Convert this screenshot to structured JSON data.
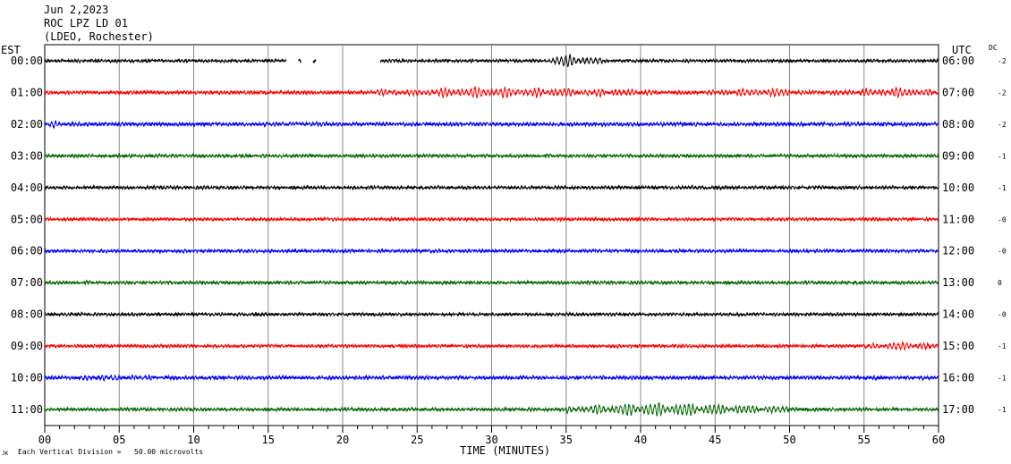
{
  "header": {
    "date": "Jun 2,2023",
    "station": "ROC LPZ LD 01",
    "network": "(LDEO, Rochester)",
    "left_tz": "EST",
    "right_tz": "UTC",
    "dc_label": "DC"
  },
  "footer": {
    "division_note": "Each Vertical Division =   50.00 microvolts",
    "corner_mark": "JK"
  },
  "chart_data": {
    "type": "line",
    "xlabel": "TIME (MINUTES)",
    "xlim": [
      0,
      60
    ],
    "x_ticks": [
      "00",
      "05",
      "10",
      "15",
      "20",
      "25",
      "30",
      "35",
      "40",
      "45",
      "50",
      "55",
      "60"
    ],
    "trace_colors": [
      "#000000",
      "#ff0000",
      "#0000ff",
      "#006400"
    ],
    "rows": [
      {
        "est": "00:00",
        "utc": "06:00",
        "dc": "-2",
        "noise": 1.2,
        "gaps": [
          [
            16.2,
            17.0
          ],
          [
            17.2,
            18.0
          ],
          [
            18.2,
            22.5
          ]
        ],
        "events": [
          {
            "start": 33.5,
            "peak": 35.2,
            "end": 37.5,
            "amp": 6
          }
        ]
      },
      {
        "est": "01:00",
        "utc": "07:00",
        "dc": "-2",
        "noise": 1.5,
        "gaps": [],
        "events": [
          {
            "start": 22,
            "peak": 30,
            "end": 41,
            "amp": 5
          },
          {
            "start": 44,
            "peak": 49.5,
            "end": 51,
            "amp": 4
          },
          {
            "start": 53,
            "peak": 58,
            "end": 60,
            "amp": 4.5
          }
        ]
      },
      {
        "est": "02:00",
        "utc": "08:00",
        "dc": "-2",
        "noise": 1.5,
        "gaps": [],
        "events": [
          {
            "start": 0,
            "peak": 0.5,
            "end": 2,
            "amp": 3
          }
        ]
      },
      {
        "est": "03:00",
        "utc": "09:00",
        "dc": "-1",
        "noise": 1.3,
        "gaps": [],
        "events": []
      },
      {
        "est": "04:00",
        "utc": "10:00",
        "dc": "-1",
        "noise": 1.3,
        "gaps": [],
        "events": []
      },
      {
        "est": "05:00",
        "utc": "11:00",
        "dc": "-0",
        "noise": 1.3,
        "gaps": [],
        "events": []
      },
      {
        "est": "06:00",
        "utc": "12:00",
        "dc": "-0",
        "noise": 1.3,
        "gaps": [],
        "events": []
      },
      {
        "est": "07:00",
        "utc": "13:00",
        "dc": "0",
        "noise": 1.3,
        "gaps": [],
        "events": []
      },
      {
        "est": "08:00",
        "utc": "14:00",
        "dc": "-0",
        "noise": 1.2,
        "gaps": [],
        "events": []
      },
      {
        "est": "09:00",
        "utc": "15:00",
        "dc": "-1",
        "noise": 1.3,
        "gaps": [],
        "events": [
          {
            "start": 55,
            "peak": 58,
            "end": 60,
            "amp": 4
          }
        ]
      },
      {
        "est": "10:00",
        "utc": "16:00",
        "dc": "-1",
        "noise": 1.5,
        "gaps": [],
        "events": [
          {
            "start": 2,
            "peak": 4,
            "end": 8,
            "amp": 2.5
          }
        ]
      },
      {
        "est": "11:00",
        "utc": "17:00",
        "dc": "-1",
        "noise": 1.3,
        "gaps": [],
        "events": [
          {
            "start": 35,
            "peak": 41,
            "end": 50,
            "amp": 7
          }
        ]
      }
    ]
  }
}
